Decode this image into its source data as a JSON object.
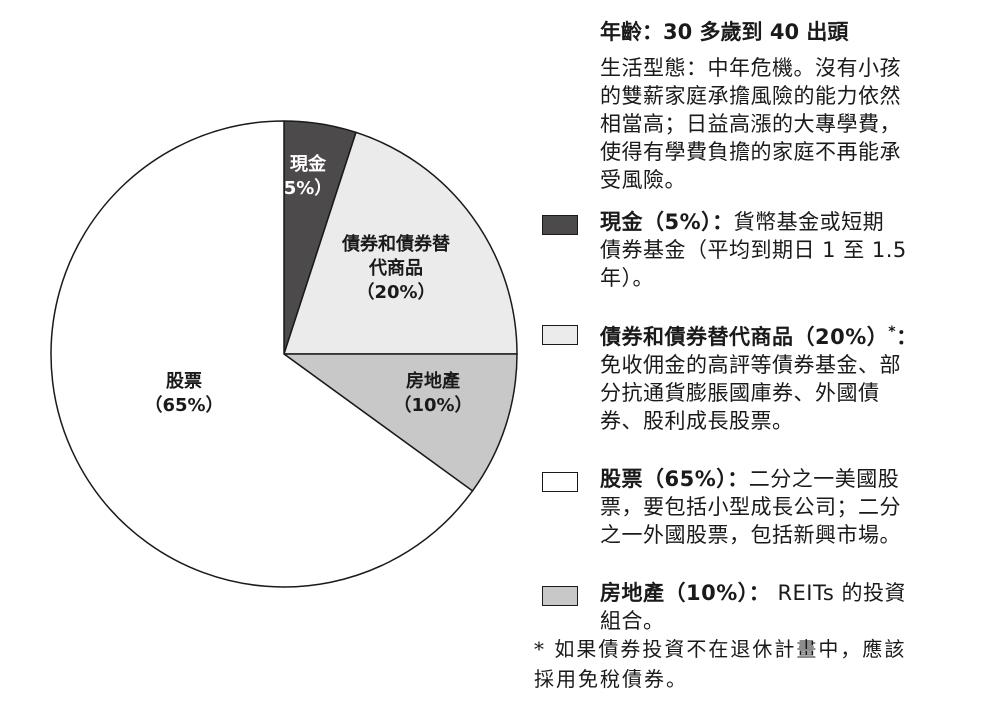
{
  "chart_data": {
    "type": "pie",
    "slices": [
      {
        "name": "現金",
        "label_lines": [
          "現金",
          "5%）"
        ],
        "value": 5,
        "color": "#4d4a4c"
      },
      {
        "name": "債券和債券替代商品",
        "label_lines": [
          "債券和債券替",
          "代商品",
          "（20%）"
        ],
        "value": 20,
        "color": "#ebebeb"
      },
      {
        "name": "房地產",
        "label_lines": [
          "房地產",
          "（10%）"
        ],
        "value": 10,
        "color": "#c8c8c8"
      },
      {
        "name": "股票",
        "label_lines": [
          "股票",
          "（65%）"
        ],
        "value": 65,
        "color": "#ffffff"
      }
    ]
  },
  "panel": {
    "heading": "年齡：30 多歲到 40 出頭",
    "lifestyle_lines": [
      "生活型態：中年危機。沒有小孩",
      "的雙薪家庭承擔風險的能力依然",
      "相當高；日益高漲的大專學費，",
      "使得有學費負擔的家庭不再能承",
      "受風險。"
    ]
  },
  "legend": [
    {
      "name": "現金（5%）",
      "sup": "",
      "colon": "：",
      "lines": [
        "貨幣基金或短期",
        "債券基金（平均到期日 1 至 1.5",
        "年）。"
      ],
      "color": "#4d4a4c"
    },
    {
      "name": "債券和債券替代商品（20%）",
      "sup": "*",
      "colon": "：",
      "lines": [
        "免收佣金的高評等債券基金、部",
        "分抗通貨膨脹國庫券、外國債",
        "券、股利成長股票。"
      ],
      "color": "#ebebeb"
    },
    {
      "name": "股票（65%）",
      "sup": "",
      "colon": "：",
      "lines": [
        "二分之一美國股",
        "票，要包括小型成長公司；二分",
        "之一外國股票，包括新興市場。"
      ],
      "color": "#ffffff"
    },
    {
      "name": "房地產（10%）",
      "sup": "",
      "colon": "：",
      "lines": [
        " REITs 的投資",
        "組合。"
      ],
      "color": "#c8c8c8"
    }
  ],
  "footnote_lines": [
    "* 如果債券投資不在退休計畫中，應該",
    "採用免稅債券。"
  ]
}
